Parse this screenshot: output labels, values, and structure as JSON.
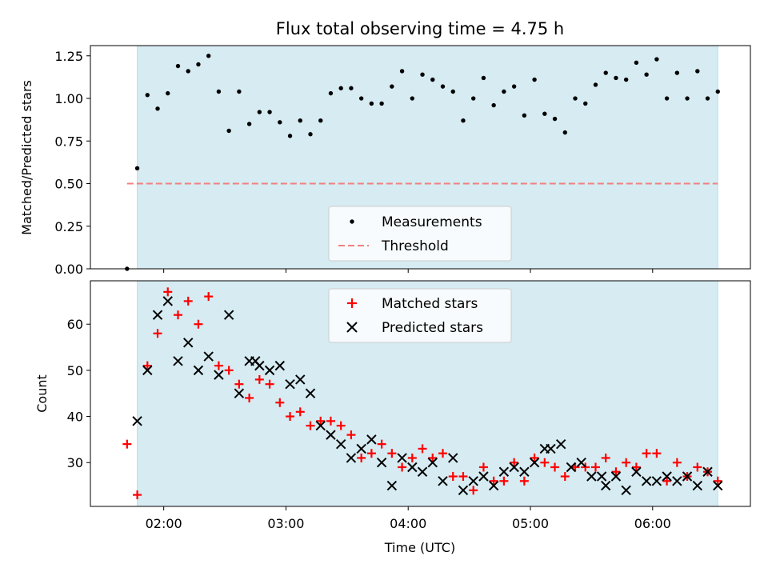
{
  "chart_data": [
    {
      "type": "scatter",
      "title": "Flux total observing time = 4.75 h",
      "xlabel": "",
      "ylabel": "Matched/Predicted stars",
      "xlim": [
        "01:24",
        "06:48"
      ],
      "ylim": [
        0,
        1.31
      ],
      "yticks": [
        "0.00",
        "0.25",
        "0.50",
        "0.75",
        "1.00",
        "1.25"
      ],
      "observing_window": {
        "start": "01:47",
        "end": "06:32"
      },
      "legend": {
        "placement": "lower-center",
        "entries": [
          "Measurements",
          "Threshold"
        ]
      },
      "threshold": {
        "value": 0.5,
        "color": "#f08080"
      },
      "series": [
        {
          "name": "Measurements",
          "marker": "dot",
          "color": "#000000",
          "x": [
            "01:42",
            "01:47",
            "01:52",
            "01:57",
            "02:02",
            "02:07",
            "02:12",
            "02:17",
            "02:22",
            "02:27",
            "02:32",
            "02:37",
            "02:42",
            "02:47",
            "02:52",
            "02:57",
            "03:02",
            "03:07",
            "03:12",
            "03:17",
            "03:22",
            "03:27",
            "03:32",
            "03:37",
            "03:42",
            "03:47",
            "03:52",
            "03:57",
            "04:02",
            "04:07",
            "04:12",
            "04:17",
            "04:22",
            "04:27",
            "04:32",
            "04:37",
            "04:42",
            "04:47",
            "04:52",
            "04:57",
            "05:02",
            "05:07",
            "05:12",
            "05:17",
            "05:22",
            "05:27",
            "05:32",
            "05:37",
            "05:42",
            "05:47",
            "05:52",
            "05:57",
            "06:02",
            "06:07",
            "06:12",
            "06:17",
            "06:22",
            "06:27",
            "06:32"
          ],
          "values": [
            0.0,
            0.59,
            1.02,
            0.94,
            1.03,
            1.19,
            1.16,
            1.2,
            1.25,
            1.04,
            0.81,
            1.04,
            0.85,
            0.92,
            0.92,
            0.86,
            0.78,
            0.87,
            0.79,
            0.87,
            1.03,
            1.06,
            1.06,
            1.0,
            0.97,
            0.97,
            1.07,
            1.16,
            1.0,
            1.14,
            1.11,
            1.07,
            1.04,
            0.87,
            1.0,
            1.12,
            0.96,
            1.04,
            1.07,
            0.9,
            1.11,
            0.91,
            0.88,
            0.8,
            1.0,
            0.97,
            1.08,
            1.15,
            1.12,
            1.11,
            1.21,
            1.14,
            1.23,
            1.0,
            1.15,
            1.0,
            1.16,
            1.0,
            1.04
          ]
        }
      ]
    },
    {
      "type": "scatter",
      "title": "",
      "xlabel": "Time (UTC)",
      "ylabel": "Count",
      "xlim": [
        "01:24",
        "06:48"
      ],
      "ylim": [
        20.5,
        69.4
      ],
      "xticks": [
        "02:00",
        "03:00",
        "04:00",
        "05:00",
        "06:00"
      ],
      "yticks": [
        "30",
        "40",
        "50",
        "60"
      ],
      "observing_window": {
        "start": "01:47",
        "end": "06:32"
      },
      "legend": {
        "placement": "top-center",
        "entries": [
          "Matched stars",
          "Predicted stars"
        ]
      },
      "series": [
        {
          "name": "Matched stars",
          "marker": "plus",
          "color": "#ff0000",
          "x": [
            "01:42",
            "01:47",
            "01:52",
            "01:57",
            "02:02",
            "02:07",
            "02:12",
            "02:17",
            "02:22",
            "02:27",
            "02:32",
            "02:37",
            "02:42",
            "02:47",
            "02:52",
            "02:57",
            "03:02",
            "03:07",
            "03:12",
            "03:17",
            "03:22",
            "03:27",
            "03:32",
            "03:37",
            "03:42",
            "03:47",
            "03:52",
            "03:57",
            "04:02",
            "04:07",
            "04:12",
            "04:17",
            "04:22",
            "04:27",
            "04:32",
            "04:37",
            "04:42",
            "04:47",
            "04:52",
            "04:57",
            "05:02",
            "05:07",
            "05:12",
            "05:17",
            "05:22",
            "05:27",
            "05:32",
            "05:37",
            "05:42",
            "05:47",
            "05:52",
            "05:57",
            "06:02",
            "06:07",
            "06:12",
            "06:17",
            "06:22",
            "06:27",
            "06:32"
          ],
          "values": [
            34,
            23,
            51,
            58,
            67,
            62,
            65,
            60,
            66,
            51,
            50,
            47,
            44,
            48,
            47,
            43,
            40,
            41,
            38,
            39,
            39,
            38,
            36,
            31,
            32,
            34,
            32,
            29,
            31,
            33,
            31,
            32,
            27,
            27,
            24,
            29,
            26,
            26,
            30,
            26,
            31,
            30,
            29,
            27,
            29,
            29,
            29,
            31,
            28,
            30,
            29,
            32,
            32,
            26,
            30,
            27,
            29,
            28,
            26
          ]
        },
        {
          "name": "Predicted stars",
          "marker": "x",
          "color": "#000000",
          "x": [
            "01:47",
            "01:52",
            "01:57",
            "02:02",
            "02:07",
            "02:12",
            "02:17",
            "02:22",
            "02:27",
            "02:32",
            "02:37",
            "02:42",
            "02:45",
            "02:47",
            "02:52",
            "02:57",
            "03:02",
            "03:07",
            "03:12",
            "03:17",
            "03:22",
            "03:27",
            "03:32",
            "03:37",
            "03:42",
            "03:47",
            "03:52",
            "03:57",
            "04:02",
            "04:07",
            "04:12",
            "04:17",
            "04:22",
            "04:27",
            "04:32",
            "04:37",
            "04:42",
            "04:47",
            "04:52",
            "04:57",
            "05:02",
            "05:07",
            "05:10",
            "05:15",
            "05:20",
            "05:25",
            "05:30",
            "05:35",
            "05:37",
            "05:42",
            "05:47",
            "05:52",
            "05:57",
            "06:02",
            "06:07",
            "06:12",
            "06:17",
            "06:22",
            "06:27",
            "06:32"
          ],
          "values": [
            39,
            50,
            62,
            65,
            52,
            56,
            50,
            53,
            49,
            62,
            45,
            52,
            52,
            51,
            50,
            51,
            47,
            48,
            45,
            38,
            36,
            34,
            31,
            33,
            35,
            30,
            25,
            31,
            29,
            28,
            30,
            26,
            31,
            24,
            26,
            27,
            25,
            28,
            29,
            28,
            30,
            33,
            33,
            34,
            29,
            30,
            27,
            27,
            25,
            27,
            24,
            28,
            26,
            26,
            27,
            26,
            27,
            25,
            28,
            25
          ]
        }
      ]
    }
  ]
}
